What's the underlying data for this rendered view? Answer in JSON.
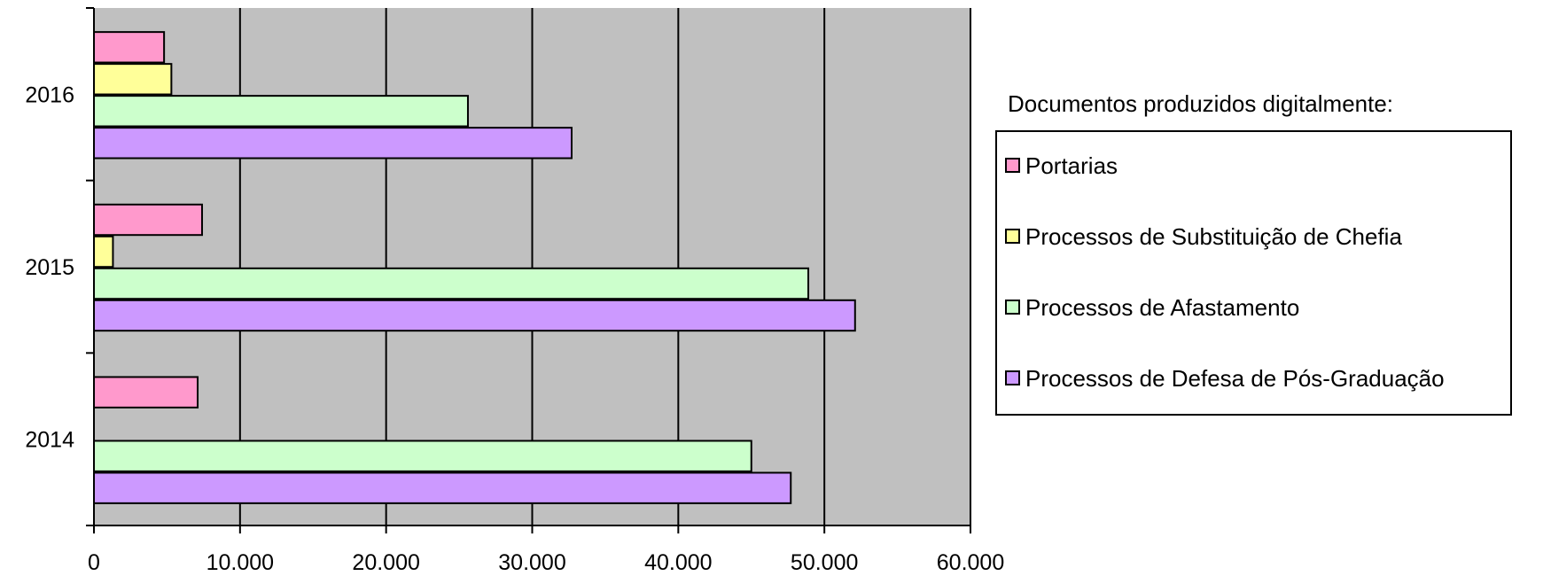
{
  "chart_data": {
    "type": "bar",
    "orientation": "horizontal",
    "title": "",
    "xlabel": "",
    "ylabel": "",
    "categories": [
      "2016",
      "2015",
      "2014"
    ],
    "xlim": [
      0,
      60000
    ],
    "xticks": [
      0,
      10000,
      20000,
      30000,
      40000,
      50000,
      60000
    ],
    "xtick_labels": [
      "0",
      "10.000",
      "20.000",
      "30.000",
      "40.000",
      "50.000",
      "60.000"
    ],
    "grid": "vertical",
    "legend_position": "right",
    "legend_title": "Documentos produzidos digitalmente:",
    "series": [
      {
        "name": "Portarias",
        "color": "#ff99cc",
        "values": [
          4800,
          7400,
          7100
        ]
      },
      {
        "name": "Processos de Substituição de Chefia",
        "color": "#ffff99",
        "values": [
          5300,
          1300,
          0
        ]
      },
      {
        "name": "Processos de Afastamento",
        "color": "#ccffcc",
        "values": [
          25600,
          48900,
          45000
        ]
      },
      {
        "name": "Processos de Defesa de Pós-Graduação",
        "color": "#cc99ff",
        "values": [
          32700,
          52100,
          47700
        ]
      }
    ],
    "plot_background": "#c0c0c0"
  }
}
